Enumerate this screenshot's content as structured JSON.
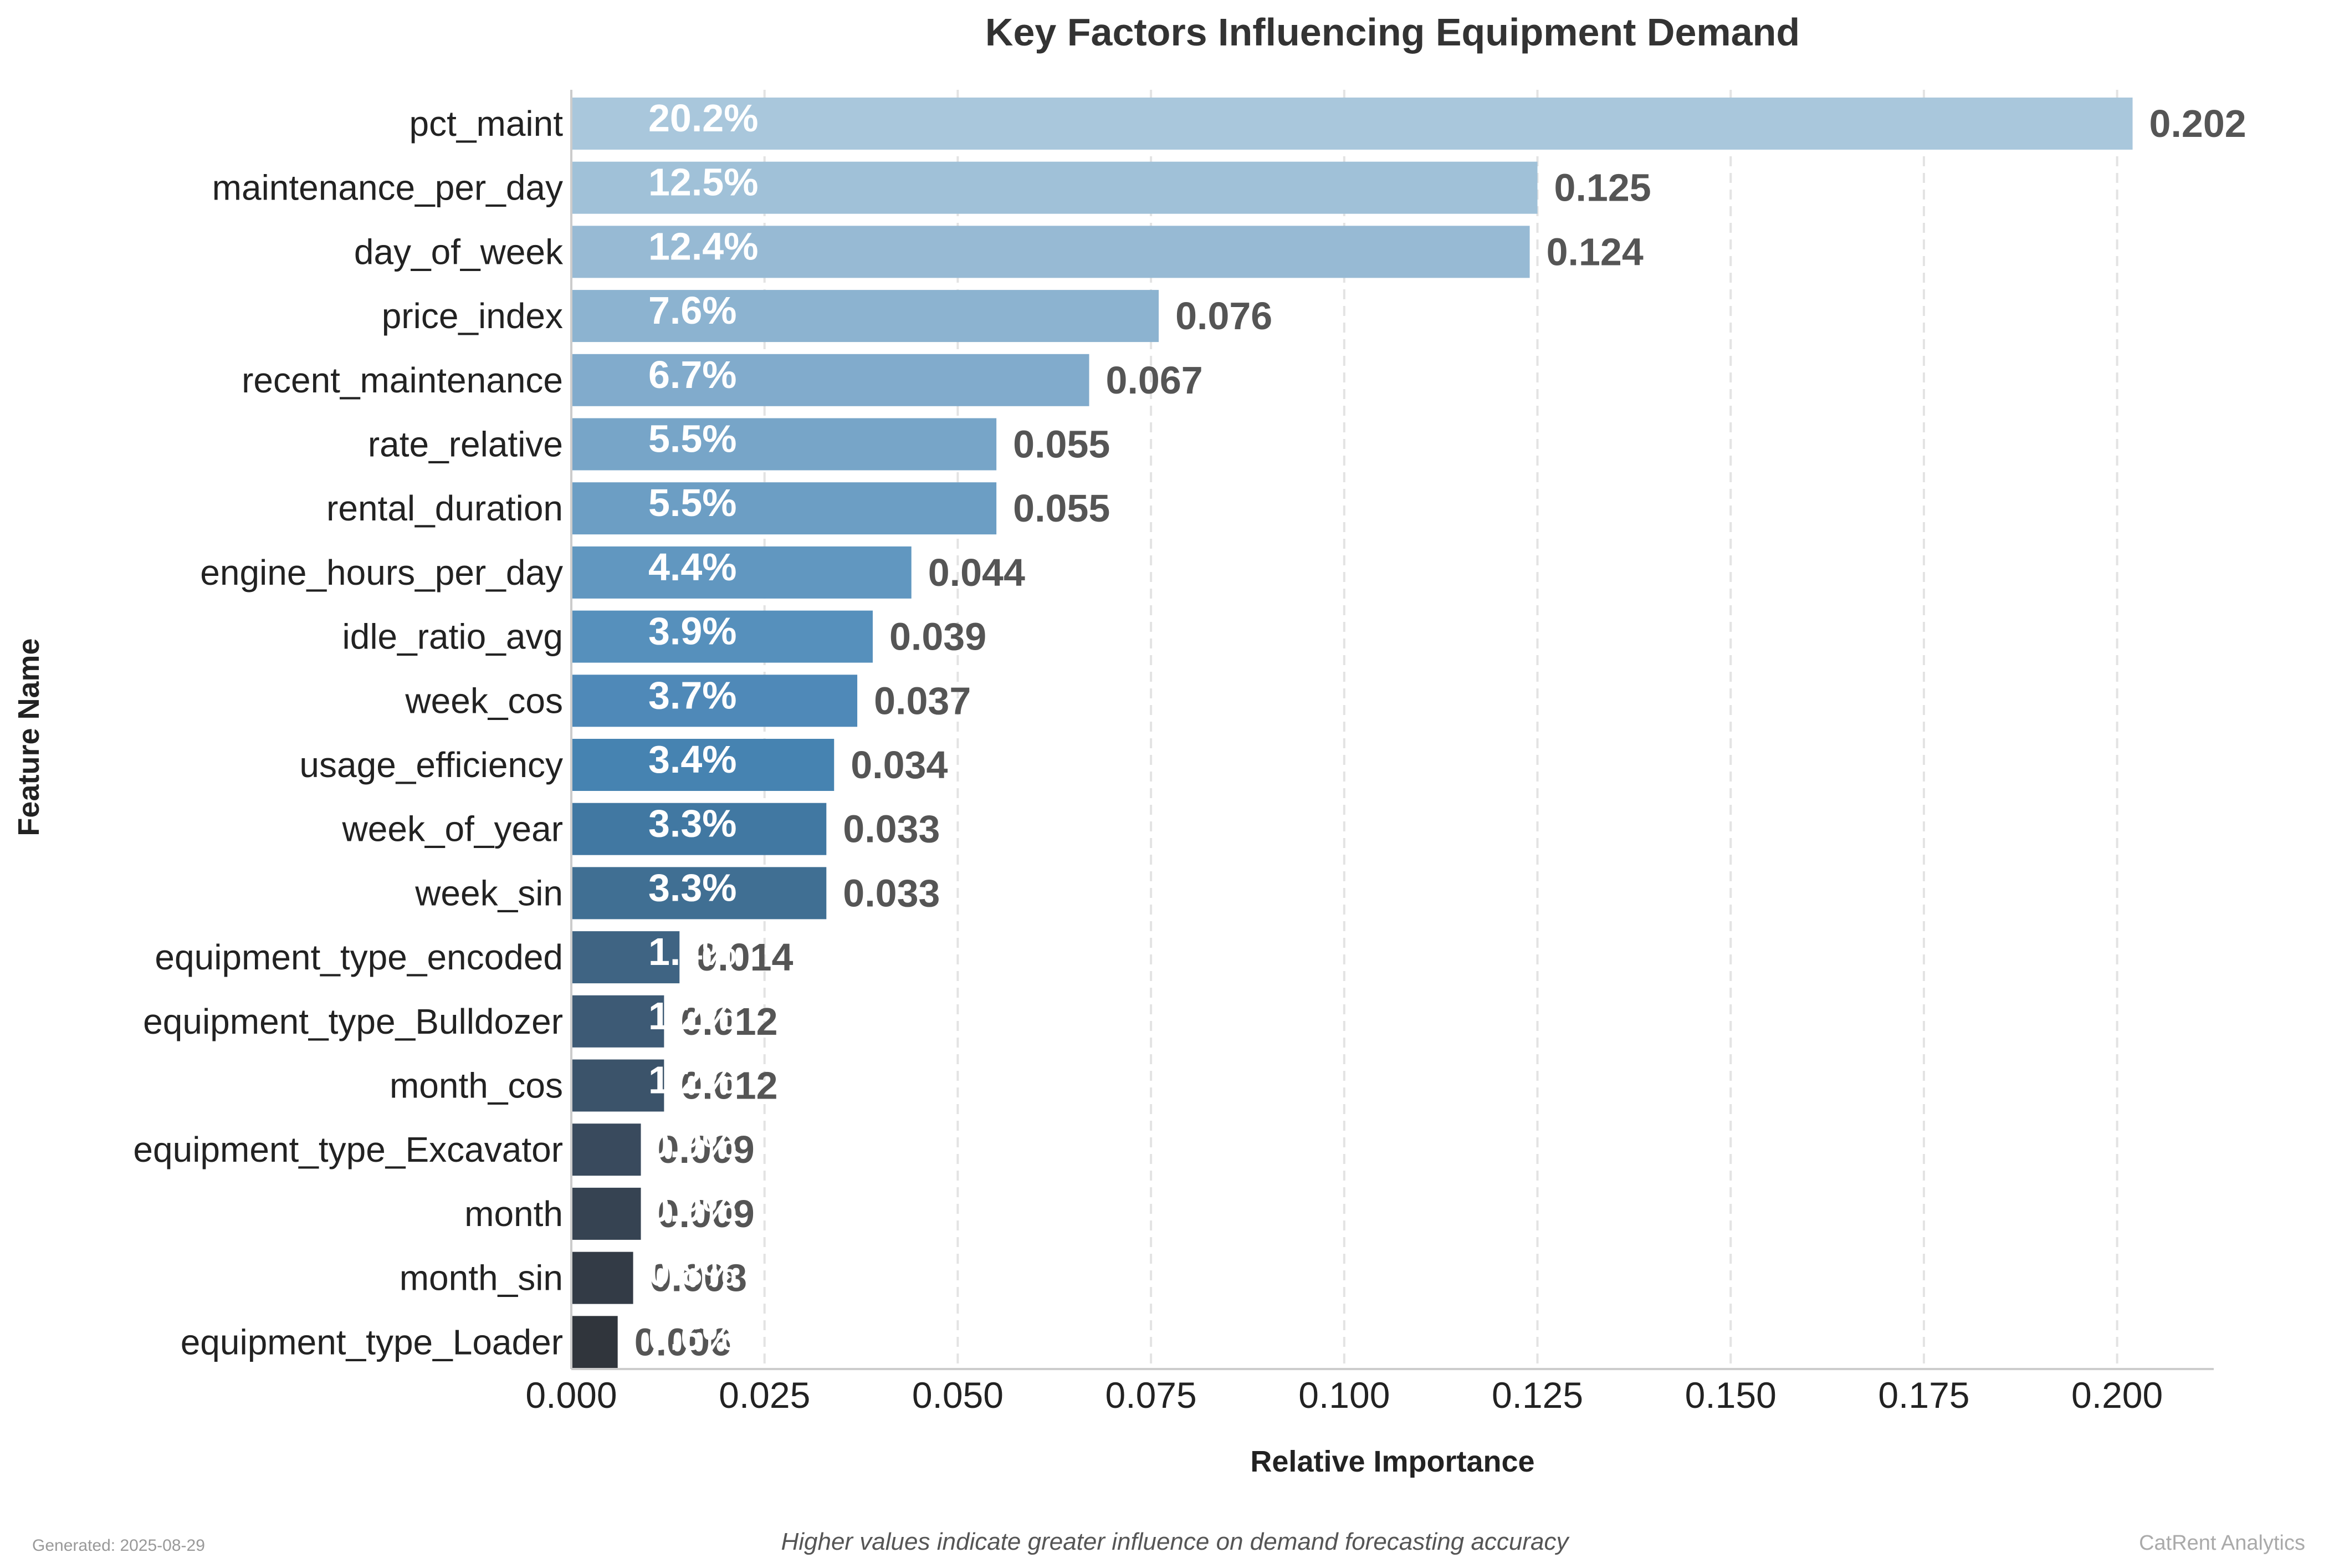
{
  "chart_data": {
    "type": "bar",
    "orientation": "horizontal",
    "title": "Key Factors Influencing Equipment Demand",
    "xlabel": "Relative Importance",
    "ylabel": "Feature Name",
    "xlim": [
      0,
      0.2125
    ],
    "xticks": [
      "0.000",
      "0.025",
      "0.050",
      "0.075",
      "0.100",
      "0.125",
      "0.150",
      "0.175",
      "0.200"
    ],
    "grid": "x-dashed",
    "categories": [
      "pct_maint",
      "maintenance_per_day",
      "day_of_week",
      "price_index",
      "recent_maintenance",
      "rate_relative",
      "rental_duration",
      "engine_hours_per_day",
      "idle_ratio_avg",
      "week_cos",
      "usage_efficiency",
      "week_of_year",
      "week_sin",
      "equipment_type_encoded",
      "equipment_type_Bulldozer",
      "month_cos",
      "equipment_type_Excavator",
      "month",
      "month_sin",
      "equipment_type_Loader"
    ],
    "values": [
      0.202,
      0.125,
      0.124,
      0.076,
      0.067,
      0.055,
      0.055,
      0.044,
      0.039,
      0.037,
      0.034,
      0.033,
      0.033,
      0.014,
      0.012,
      0.012,
      0.009,
      0.009,
      0.008,
      0.006
    ],
    "value_labels": [
      "0.202",
      "0.125",
      "0.124",
      "0.076",
      "0.067",
      "0.055",
      "0.055",
      "0.044",
      "0.039",
      "0.037",
      "0.034",
      "0.033",
      "0.033",
      "0.014",
      "0.012",
      "0.012",
      "0.009",
      "0.009",
      "0.008",
      "0.006"
    ],
    "percent_labels": [
      "20.2%",
      "12.5%",
      "12.4%",
      "7.6%",
      "6.7%",
      "5.5%",
      "5.5%",
      "4.4%",
      "3.9%",
      "3.7%",
      "3.4%",
      "3.3%",
      "3.3%",
      "1.4%",
      "1.2%",
      "1.2%",
      "0.9%",
      "0.9%",
      "0.8%",
      "0.6%"
    ],
    "colors": [
      "#a9c7dc",
      "#a0c1d8",
      "#97bad4",
      "#8cb3d0",
      "#81abcc",
      "#77a5c8",
      "#6c9ec4",
      "#6197c0",
      "#5690bc",
      "#4f89b8",
      "#4683b1",
      "#4178a2",
      "#406f93",
      "#3f6483",
      "#3d5a75",
      "#3b536a",
      "#394a5d",
      "#364352",
      "#333b46",
      "#30353c"
    ]
  },
  "footer": {
    "generated": "Generated: 2025-08-29",
    "subtitle": "Higher values indicate greater influence on demand forecasting accuracy",
    "brand": "CatRent Analytics"
  }
}
